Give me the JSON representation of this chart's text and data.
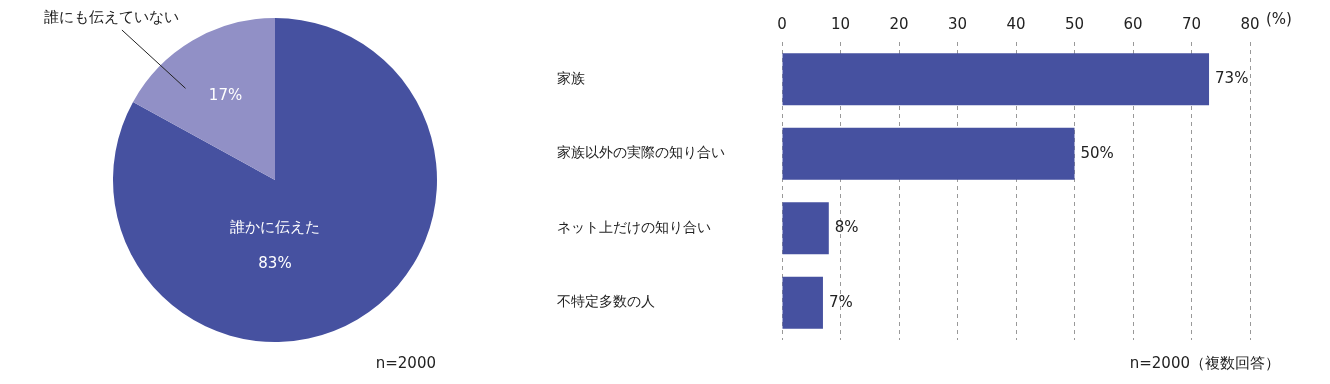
{
  "chart_data": [
    {
      "type": "pie",
      "categories": [
        "誰かに伝えた",
        "誰にも伝えていない"
      ],
      "values": [
        83,
        17
      ],
      "colors": [
        "#4651a0",
        "#9190c6"
      ],
      "value_labels": [
        "83%",
        "17%"
      ],
      "legend": false,
      "annotations": [
        "n=2000"
      ]
    },
    {
      "type": "bar",
      "orientation": "horizontal",
      "categories": [
        "家族",
        "家族以外の実際の知り合い",
        "ネット上だけの知り合い",
        "不特定多数の人"
      ],
      "series": [
        {
          "color": "#4651a0",
          "values": [
            73,
            50,
            8,
            7
          ],
          "value_labels": [
            "73%",
            "50%",
            "8%",
            "7%"
          ]
        }
      ],
      "xlim": [
        0,
        80
      ],
      "xticks": [
        0,
        10,
        20,
        30,
        40,
        50,
        60,
        70,
        80
      ],
      "xlabel": "(%)",
      "grid": "x",
      "line_style": "dashed",
      "legend": false,
      "annotations": [
        "n=2000（複数回答）"
      ]
    }
  ]
}
